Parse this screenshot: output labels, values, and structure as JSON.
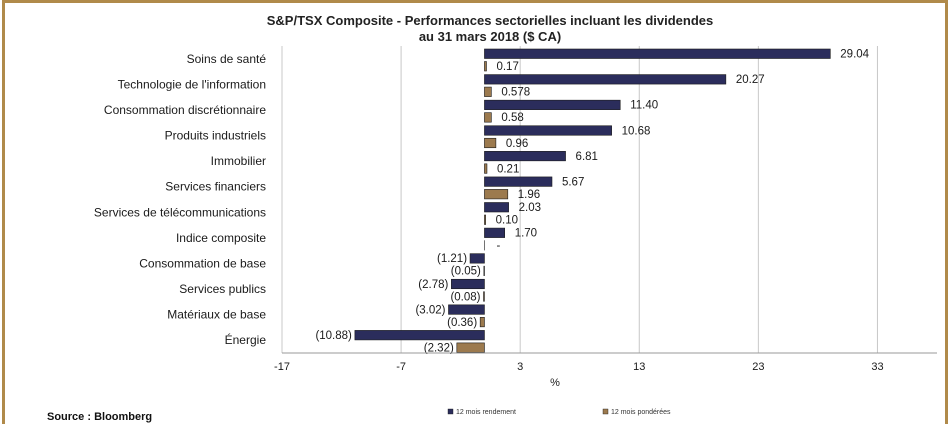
{
  "chart_data": {
    "type": "bar",
    "orientation": "horizontal",
    "title": "S&P/TSX Composite - Performances sectorielles incluant les dividendes",
    "subtitle": "au 31 mars 2018 ($ CA)",
    "xlabel": "%",
    "xlim": [
      -17,
      38
    ],
    "xticks": [
      -17,
      -7,
      3,
      13,
      23,
      33
    ],
    "grid": true,
    "legend_position": "bottom",
    "categories": [
      "Soins de santé",
      "Technologie de l'information",
      "Consommation discrétionnaire",
      "Produits industriels",
      "Immobilier",
      "Services financiers",
      "Services de télécommunications",
      "Indice composite",
      "Consommation de base",
      "Services publics",
      "Matériaux de base",
      "Énergie"
    ],
    "series": [
      {
        "name": "12 mois rendement",
        "color": "#2b2d5c",
        "values": [
          29.04,
          20.27,
          11.4,
          10.68,
          6.81,
          5.67,
          2.03,
          1.7,
          -1.21,
          -2.78,
          -3.02,
          -10.88
        ],
        "labels": [
          "29.04",
          "20.27",
          "11.40",
          "10.68",
          "6.81",
          "5.67",
          "2.03",
          "1.70",
          "(1.21)",
          "(2.78)",
          "(3.02)",
          "(10.88)"
        ]
      },
      {
        "name": "12 mois pondérées",
        "color": "#9c7a4e",
        "values": [
          0.17,
          0.578,
          0.58,
          0.96,
          0.21,
          1.96,
          0.1,
          0,
          -0.05,
          -0.08,
          -0.36,
          -2.32
        ],
        "labels": [
          "0.17",
          "0.578",
          "0.58",
          "0.96",
          "0.21",
          "1.96",
          "0.10",
          "-",
          "(0.05)",
          "(0.08)",
          "(0.36)",
          "(2.32)"
        ]
      }
    ]
  },
  "source": "Source : Bloomberg"
}
